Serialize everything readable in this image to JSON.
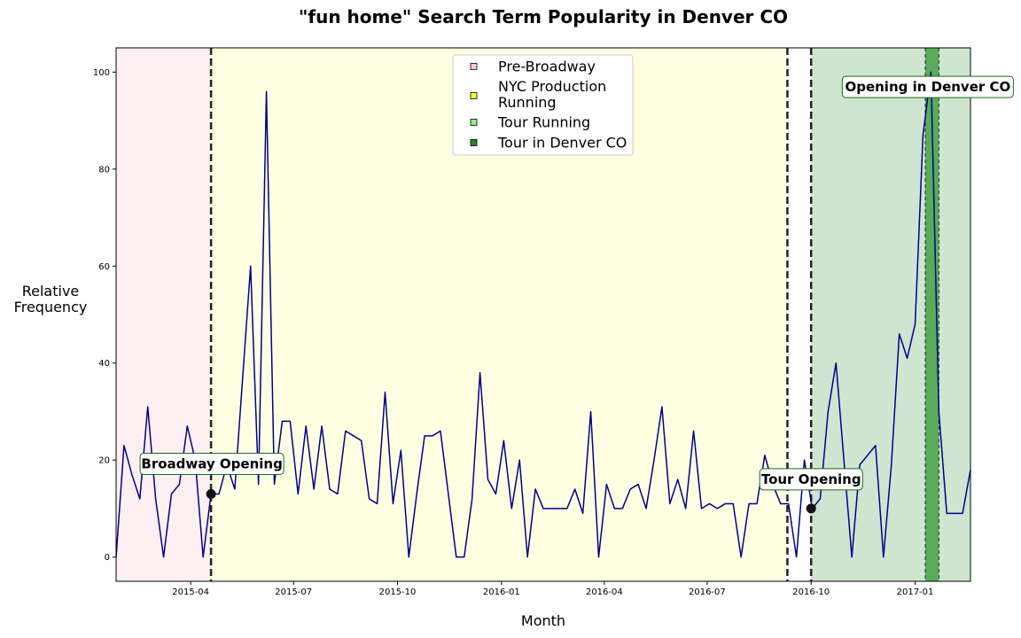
{
  "chart_data": {
    "type": "line",
    "title": "\"fun home\" Search Term Popularity in Denver CO",
    "xlabel": "Month",
    "ylabel": [
      "Relative",
      "Frequency"
    ],
    "xlim": [
      "2015-01-25",
      "2017-02-19"
    ],
    "ylim": [
      -5,
      105
    ],
    "yticks": [
      0,
      20,
      40,
      60,
      80,
      100
    ],
    "xticks": [
      "2015-04-01",
      "2015-07-01",
      "2015-10-01",
      "2016-01-01",
      "2016-04-01",
      "2016-07-01",
      "2016-10-01",
      "2017-01-01"
    ],
    "xtick_labels": [
      "2015-04",
      "2015-07",
      "2015-10",
      "2016-01",
      "2016-04",
      "2016-07",
      "2016-10",
      "2017-01"
    ],
    "grid": false,
    "legend_position": "top-center",
    "colors": {
      "line": "#00008b",
      "pre_broadway": "#fdf0f3",
      "nyc_production": "#ffffe1",
      "tour_running": "#cfe5cf",
      "tour_denver": "#5aac5a"
    },
    "series": [
      {
        "x": [
          "2015-01-25",
          "2015-02-01",
          "2015-02-08",
          "2015-02-15",
          "2015-02-22",
          "2015-03-01",
          "2015-03-08",
          "2015-03-15",
          "2015-03-22",
          "2015-03-29",
          "2015-04-05",
          "2015-04-12",
          "2015-04-19",
          "2015-04-26",
          "2015-05-03",
          "2015-05-10",
          "2015-05-17",
          "2015-05-24",
          "2015-05-31",
          "2015-06-07",
          "2015-06-14",
          "2015-06-21",
          "2015-06-28",
          "2015-07-05",
          "2015-07-12",
          "2015-07-19",
          "2015-07-26",
          "2015-08-02",
          "2015-08-09",
          "2015-08-16",
          "2015-08-23",
          "2015-08-30",
          "2015-09-06",
          "2015-09-13",
          "2015-09-20",
          "2015-09-27",
          "2015-10-04",
          "2015-10-11",
          "2015-10-18",
          "2015-10-25",
          "2015-11-01",
          "2015-11-08",
          "2015-11-15",
          "2015-11-22",
          "2015-11-29",
          "2015-12-06",
          "2015-12-13",
          "2015-12-20",
          "2015-12-27",
          "2016-01-03",
          "2016-01-10",
          "2016-01-17",
          "2016-01-24",
          "2016-01-31",
          "2016-02-07",
          "2016-02-14",
          "2016-02-21",
          "2016-02-28",
          "2016-03-06",
          "2016-03-13",
          "2016-03-20",
          "2016-03-27",
          "2016-04-03",
          "2016-04-10",
          "2016-04-17",
          "2016-04-24",
          "2016-05-01",
          "2016-05-08",
          "2016-05-15",
          "2016-05-22",
          "2016-05-29",
          "2016-06-05",
          "2016-06-12",
          "2016-06-19",
          "2016-06-26",
          "2016-07-03",
          "2016-07-10",
          "2016-07-17",
          "2016-07-24",
          "2016-07-31",
          "2016-08-07",
          "2016-08-14",
          "2016-08-21",
          "2016-08-28",
          "2016-09-04",
          "2016-09-11",
          "2016-09-18",
          "2016-09-25",
          "2016-10-02",
          "2016-10-09",
          "2016-10-16",
          "2016-10-23",
          "2016-10-30",
          "2016-11-06",
          "2016-11-13",
          "2016-11-20",
          "2016-11-27",
          "2016-12-04",
          "2016-12-11",
          "2016-12-18",
          "2016-12-25",
          "2017-01-01",
          "2017-01-08",
          "2017-01-15",
          "2017-01-22",
          "2017-01-29",
          "2017-02-05",
          "2017-02-12",
          "2017-02-19"
        ],
        "values": [
          0,
          23,
          17,
          12,
          31,
          12,
          0,
          13,
          15,
          27,
          20,
          0,
          13,
          13,
          19,
          14,
          37,
          60,
          15,
          96,
          15,
          28,
          28,
          13,
          27,
          14,
          27,
          14,
          13,
          26,
          25,
          24,
          12,
          11,
          34,
          11,
          22,
          0,
          13,
          25,
          25,
          26,
          13,
          0,
          0,
          12,
          38,
          16,
          13,
          24,
          10,
          20,
          0,
          14,
          10,
          10,
          10,
          10,
          14,
          9,
          30,
          0,
          15,
          10,
          10,
          14,
          15,
          10,
          20,
          31,
          11,
          16,
          10,
          26,
          10,
          11,
          10,
          11,
          11,
          0,
          11,
          11,
          21,
          15,
          11,
          11,
          0,
          20,
          10,
          12,
          30,
          40,
          20,
          0,
          19,
          21,
          23,
          0,
          19,
          46,
          41,
          48,
          87,
          100,
          30,
          9,
          9,
          9,
          18
        ]
      }
    ],
    "regions": [
      {
        "label": "Pre-Broadway",
        "start": "2015-01-25",
        "end": "2015-04-19"
      },
      {
        "label": "NYC Production Running",
        "start": "2015-04-19",
        "end": "2016-09-10"
      },
      {
        "label": "Tour Running",
        "start": "2016-10-01",
        "end": "2017-02-19"
      },
      {
        "label": "Tour in Denver CO",
        "start": "2017-01-10",
        "end": "2017-01-22"
      }
    ],
    "vlines": [
      "2015-04-19",
      "2016-09-10",
      "2016-10-01"
    ],
    "legend": [
      "Pre-Broadway",
      "NYC Production Running",
      "Tour Running",
      "Tour in Denver CO"
    ],
    "annotations": [
      {
        "text": "Broadway Opening",
        "x": "2015-04-19",
        "y": 13,
        "marker": true
      },
      {
        "text": "Tour Opening",
        "x": "2016-10-01",
        "y": 10,
        "marker": true
      },
      {
        "text": "Opening in Denver CO",
        "x": "2017-01-15",
        "y": 92,
        "marker": false
      }
    ]
  }
}
